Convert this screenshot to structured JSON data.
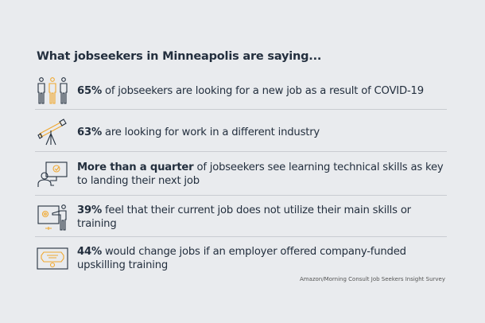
{
  "title": "What jobseekers in Minneapolis are saying...",
  "colors": {
    "text": "#232f3e",
    "accent": "#f0a830",
    "background": "#e9ebee"
  },
  "items": [
    {
      "icon": "people-icon",
      "bold": "65%",
      "text": " of jobseekers are looking for a new job as a result of COVID-19"
    },
    {
      "icon": "telescope-icon",
      "bold": "63%",
      "text": " are looking for work in a different industry"
    },
    {
      "icon": "person-computer-icon",
      "bold": "More than a quarter",
      "text": " of jobseekers see learning technical skills as key to landing their next job"
    },
    {
      "icon": "presenter-icon",
      "bold": "39%",
      "text": " feel that their current job does not utilize their main skills or training"
    },
    {
      "icon": "certificate-icon",
      "bold": "44%",
      "text": " would change jobs if an employer offered company-funded upskilling training"
    }
  ],
  "source": "Amazon/Morning Consult Job Seekers Insight Survey"
}
